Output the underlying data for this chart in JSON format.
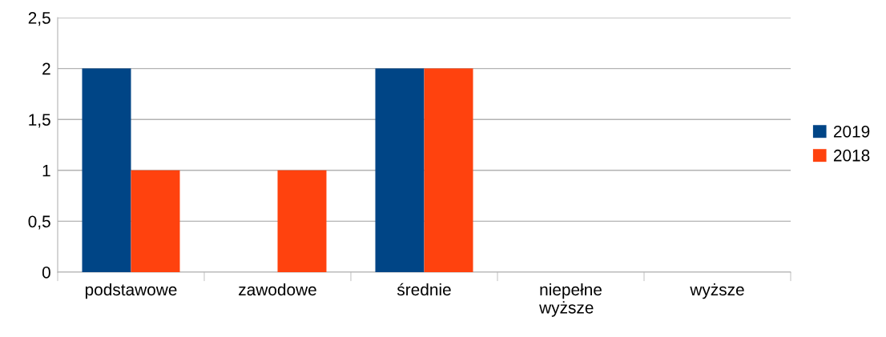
{
  "chart_data": {
    "type": "bar",
    "categories": [
      "podstawowe",
      "zawodowe",
      "średnie",
      "niepełne\nwyższe",
      "wyższe"
    ],
    "series": [
      {
        "name": "2019",
        "color": "#004586",
        "values": [
          2,
          0,
          2,
          0,
          0
        ]
      },
      {
        "name": "2018",
        "color": "#ff420e",
        "values": [
          1,
          1,
          2,
          0,
          0
        ]
      }
    ],
    "ylim": [
      0,
      2.5
    ],
    "yticks": [
      0,
      {
        "value": 0.5,
        "label": "0,5"
      },
      1,
      {
        "value": 1.5,
        "label": "1,5"
      },
      2,
      {
        "value": 2.5,
        "label": "2,5"
      }
    ],
    "grid": "y",
    "legend": "right"
  }
}
